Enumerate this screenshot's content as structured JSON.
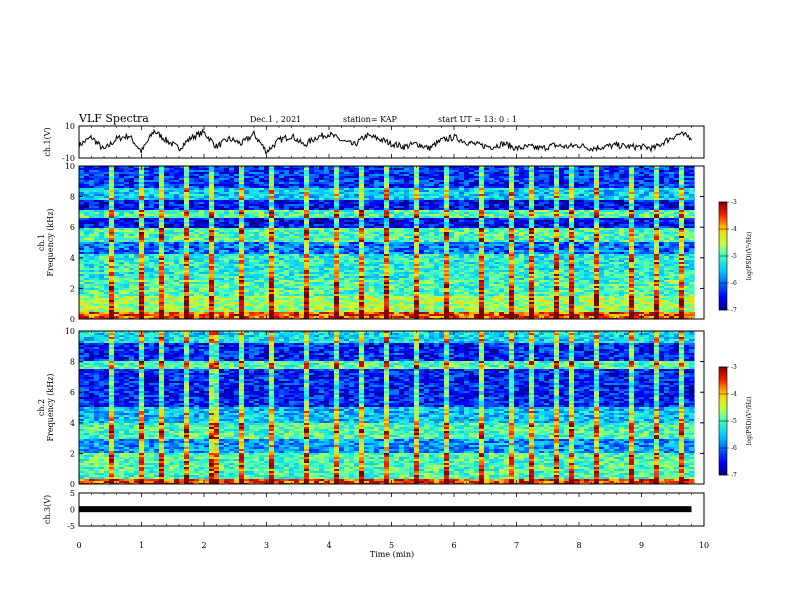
{
  "header": {
    "title": "VLF Spectra",
    "date": "Dec.1 , 2021",
    "station": "station= KAP",
    "start": "start  UT =   13: 0  : 1"
  },
  "chart_data": [
    {
      "type": "line",
      "name": "ch1-waveform",
      "ylabel": "ch.1(V)",
      "ylim": [
        -10,
        10
      ],
      "yticks": [
        "10",
        "-10"
      ],
      "x": [
        0.0,
        0.2,
        0.4,
        0.6,
        0.8,
        1.0,
        1.2,
        1.4,
        1.6,
        1.8,
        2.0,
        2.2,
        2.4,
        2.6,
        2.8,
        3.0,
        3.2,
        3.4,
        3.6,
        3.8,
        4.0,
        4.2,
        4.4,
        4.6,
        4.8,
        5.0,
        5.2,
        5.4,
        5.6,
        5.8,
        6.0,
        6.2,
        6.4,
        6.6,
        6.8,
        7.0,
        7.2,
        7.4,
        7.6,
        7.8,
        8.0,
        8.2,
        8.4,
        8.6,
        8.8,
        9.0,
        9.2,
        9.4,
        9.6,
        9.8
      ],
      "values": [
        -2,
        3,
        -5,
        2,
        4,
        -6,
        7,
        1,
        -4,
        3,
        6,
        -3,
        2,
        -1,
        5,
        -6,
        1,
        4,
        -2,
        3,
        5,
        1,
        -2,
        4,
        2,
        -1,
        -3,
        -1,
        -4,
        1,
        3,
        0,
        -2,
        -3,
        -1,
        -4,
        -3,
        -4,
        -2,
        -3,
        -2,
        -4,
        -3,
        -2,
        -3,
        -3,
        -4,
        1,
        5,
        3
      ]
    },
    {
      "type": "heatmap",
      "name": "ch1-spectrogram",
      "ylabel": "ch.1\nFrequency (kHz)",
      "ylim": [
        0,
        10
      ],
      "yticks": [
        "0",
        "2",
        "4",
        "6",
        "8",
        "10"
      ],
      "colorbar": {
        "label": "log(PSD)(V²/Hz)",
        "range": [
          -7,
          -3
        ],
        "ticks": [
          "-3",
          "-4",
          "-5",
          "-6",
          "-7"
        ]
      },
      "approx_level_by_band": [
        {
          "f": [
            0,
            0.4
          ],
          "level": -3.6
        },
        {
          "f": [
            0.4,
            1.5
          ],
          "level": -4.6
        },
        {
          "f": [
            1.5,
            2.5
          ],
          "level": -5.0
        },
        {
          "f": [
            2.5,
            4.3
          ],
          "level": -5.2
        },
        {
          "f": [
            4.3,
            5.0
          ],
          "level": -6.0
        },
        {
          "f": [
            5.0,
            6.0
          ],
          "level": -5.0
        },
        {
          "f": [
            6.0,
            6.6
          ],
          "level": -6.5
        },
        {
          "f": [
            6.6,
            7.1
          ],
          "level": -5.0
        },
        {
          "f": [
            7.1,
            7.8
          ],
          "level": -6.5
        },
        {
          "f": [
            7.8,
            8.5
          ],
          "level": -5.5
        },
        {
          "f": [
            8.5,
            10
          ],
          "level": -6.3
        }
      ],
      "burst_times_min": [
        0.5,
        1.0,
        1.3,
        1.7,
        2.1,
        2.6,
        3.1,
        3.6,
        4.1,
        4.5,
        4.9,
        5.4,
        5.9,
        6.4,
        6.9,
        7.2,
        7.6,
        7.9,
        8.3,
        8.8,
        9.2,
        9.6
      ]
    },
    {
      "type": "heatmap",
      "name": "ch2-spectrogram",
      "ylabel": "ch.2\nFrequency (kHz)",
      "ylim": [
        0,
        10
      ],
      "yticks": [
        "0",
        "2",
        "4",
        "6",
        "8",
        "10"
      ],
      "colorbar": {
        "label": "log(PSD)(V²/Hz)",
        "range": [
          -7,
          -3
        ],
        "ticks": [
          "-3",
          "-4",
          "-5",
          "-6",
          "-7"
        ]
      },
      "approx_level_by_band": [
        {
          "f": [
            0,
            0.3
          ],
          "level": -3.6
        },
        {
          "f": [
            0.3,
            2.0
          ],
          "level": -5.0
        },
        {
          "f": [
            2.0,
            3.0
          ],
          "level": -5.8
        },
        {
          "f": [
            3.0,
            4.0
          ],
          "level": -5.0
        },
        {
          "f": [
            4.0,
            5.0
          ],
          "level": -5.6
        },
        {
          "f": [
            5.0,
            7.5
          ],
          "level": -6.4
        },
        {
          "f": [
            7.5,
            8.0
          ],
          "level": -5.0
        },
        {
          "f": [
            8.0,
            9.2
          ],
          "level": -6.4
        },
        {
          "f": [
            9.2,
            10
          ],
          "level": -5.4
        }
      ],
      "burst_times_min": [
        0.5,
        1.0,
        1.3,
        1.7,
        2.1,
        2.2,
        2.6,
        3.1,
        3.6,
        4.1,
        4.5,
        4.9,
        5.4,
        5.9,
        6.4,
        6.9,
        7.2,
        7.6,
        7.9,
        8.3,
        8.8,
        9.2,
        9.6
      ]
    },
    {
      "type": "line",
      "name": "ch3-waveform",
      "ylabel": "ch.3(V)",
      "ylim": [
        -5,
        5
      ],
      "yticks": [
        "5",
        "0",
        "-5"
      ],
      "x": [
        0,
        9.8
      ],
      "values": [
        0.1,
        0.1
      ]
    }
  ],
  "axis": {
    "xlabel": "Time  (min)",
    "xlim": [
      0,
      10
    ],
    "xticks": [
      "0",
      "1",
      "2",
      "3",
      "4",
      "5",
      "6",
      "7",
      "8",
      "9",
      "10"
    ]
  },
  "colors": {
    "line": "#000000",
    "cmap": [
      "#00007f",
      "#0000ff",
      "#00a0ff",
      "#30ffd0",
      "#a0ff60",
      "#ffff00",
      "#ff8000",
      "#ff0000",
      "#7f0000"
    ]
  }
}
